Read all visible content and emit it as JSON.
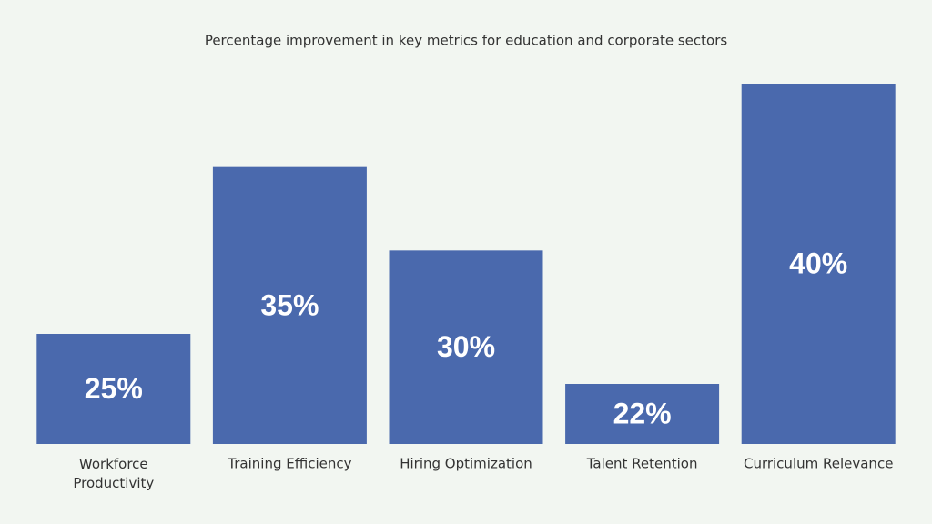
{
  "chart_data": {
    "type": "bar",
    "title": "Percentage improvement in key metrics for education and corporate sectors",
    "categories": [
      "Workforce Productivity",
      "Training Efficiency",
      "Hiring Optimization",
      "Talent Retention",
      "Curriculum Relevance"
    ],
    "values": [
      25,
      35,
      30,
      22,
      40
    ],
    "value_labels": [
      "25%",
      "35%",
      "30%",
      "22%",
      "40%"
    ],
    "color": "#4a69ad",
    "ylim": [
      18.4,
      40
    ]
  }
}
